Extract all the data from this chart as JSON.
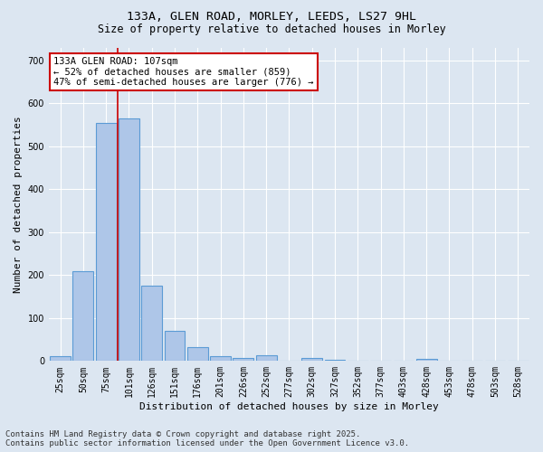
{
  "title_line1": "133A, GLEN ROAD, MORLEY, LEEDS, LS27 9HL",
  "title_line2": "Size of property relative to detached houses in Morley",
  "xlabel": "Distribution of detached houses by size in Morley",
  "ylabel": "Number of detached properties",
  "categories": [
    "25sqm",
    "50sqm",
    "75sqm",
    "101sqm",
    "126sqm",
    "151sqm",
    "176sqm",
    "201sqm",
    "226sqm",
    "252sqm",
    "277sqm",
    "302sqm",
    "327sqm",
    "352sqm",
    "377sqm",
    "403sqm",
    "428sqm",
    "453sqm",
    "478sqm",
    "503sqm",
    "528sqm"
  ],
  "values": [
    12,
    210,
    555,
    565,
    175,
    70,
    33,
    12,
    6,
    13,
    0,
    6,
    3,
    0,
    0,
    0,
    5,
    0,
    0,
    0,
    0
  ],
  "bar_color": "#aec6e8",
  "bar_edge_color": "#5b9bd5",
  "bar_linewidth": 0.8,
  "property_bin_index": 3,
  "annotation_title": "133A GLEN ROAD: 107sqm",
  "annotation_line2": "← 52% of detached houses are smaller (859)",
  "annotation_line3": "47% of semi-detached houses are larger (776) →",
  "annotation_box_facecolor": "#ffffff",
  "annotation_box_edgecolor": "#cc0000",
  "red_line_color": "#cc0000",
  "ylim": [
    0,
    730
  ],
  "yticks": [
    0,
    100,
    200,
    300,
    400,
    500,
    600,
    700
  ],
  "background_color": "#dce6f1",
  "plot_background_color": "#dce6f1",
  "grid_color": "#ffffff",
  "footer_line1": "Contains HM Land Registry data © Crown copyright and database right 2025.",
  "footer_line2": "Contains public sector information licensed under the Open Government Licence v3.0.",
  "title_fontsize": 9.5,
  "subtitle_fontsize": 8.5,
  "axis_label_fontsize": 8,
  "tick_fontsize": 7,
  "annotation_fontsize": 7.5,
  "footer_fontsize": 6.5
}
